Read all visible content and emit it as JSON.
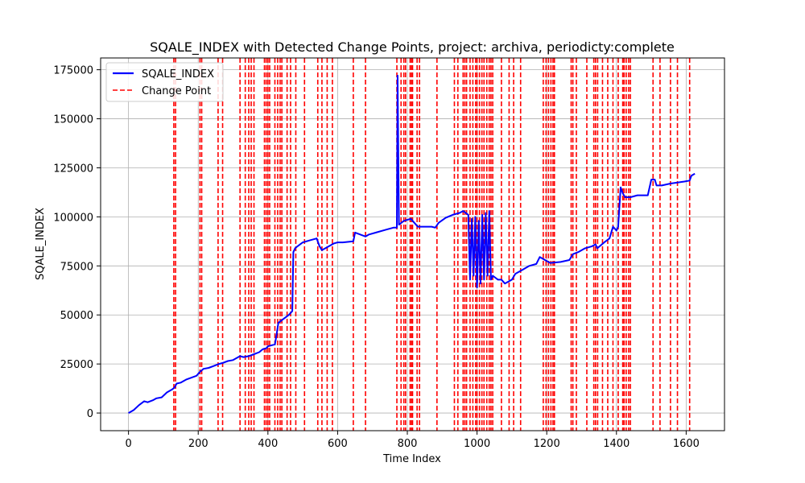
{
  "chart_data": {
    "type": "line",
    "title": "SQALE_INDEX with Detected Change Points, project: archiva, periodicty:complete",
    "xlabel": "Time Index",
    "ylabel": "SQALE_INDEX",
    "xlim": [
      -80,
      1710
    ],
    "ylim": [
      -9000,
      181000
    ],
    "x_ticks": [
      0,
      200,
      400,
      600,
      800,
      1000,
      1200,
      1400,
      1600
    ],
    "x_tick_labels": [
      "0",
      "200",
      "400",
      "600",
      "800",
      "1000",
      "1200",
      "1400",
      "1600"
    ],
    "y_ticks": [
      0,
      25000,
      50000,
      75000,
      100000,
      125000,
      150000,
      175000
    ],
    "y_tick_labels": [
      "0",
      "25000",
      "50000",
      "75000",
      "100000",
      "125000",
      "150000",
      "175000"
    ],
    "grid": true,
    "legend_position": "top-left",
    "series": [
      {
        "name": "SQALE_INDEX",
        "color": "#0000ff",
        "style": "solid",
        "x": [
          0,
          15,
          30,
          45,
          55,
          70,
          80,
          95,
          110,
          125,
          132,
          138,
          150,
          165,
          180,
          195,
          205,
          215,
          230,
          245,
          260,
          270,
          285,
          300,
          320,
          330,
          345,
          360,
          375,
          385,
          395,
          400,
          420,
          425,
          430,
          445,
          460,
          470,
          473,
          478,
          485,
          500,
          520,
          540,
          548,
          555,
          575,
          590,
          600,
          615,
          645,
          650,
          680,
          690,
          710,
          740,
          760,
          770,
          772,
          776,
          790,
          810,
          830,
          840,
          870,
          880,
          890,
          910,
          930,
          950,
          960,
          975,
          980,
          985,
          990,
          995,
          1000,
          1005,
          1010,
          1015,
          1020,
          1025,
          1030,
          1035,
          1040,
          1045,
          1060,
          1070,
          1080,
          1100,
          1110,
          1130,
          1150,
          1170,
          1180,
          1195,
          1210,
          1240,
          1265,
          1275,
          1290,
          1310,
          1330,
          1340,
          1345,
          1365,
          1380,
          1390,
          1400,
          1405,
          1412,
          1418,
          1425,
          1440,
          1460,
          1490,
          1500,
          1510,
          1515,
          1530,
          1555,
          1575,
          1595,
          1610,
          1615,
          1620,
          1625
        ],
        "y": [
          0,
          1500,
          4000,
          6000,
          5500,
          6500,
          7500,
          8000,
          10500,
          12000,
          13000,
          15000,
          15500,
          17000,
          18000,
          19000,
          21000,
          22500,
          23000,
          24000,
          25000,
          25500,
          26500,
          27000,
          29000,
          28500,
          29000,
          30000,
          31000,
          32500,
          33000,
          34000,
          35000,
          40000,
          46000,
          48000,
          50000,
          52000,
          82000,
          84000,
          85000,
          87000,
          88000,
          89000,
          85000,
          83000,
          85000,
          86500,
          87000,
          87000,
          87500,
          92000,
          90000,
          91000,
          92000,
          93500,
          94500,
          94500,
          172000,
          96000,
          98000,
          99000,
          95000,
          95000,
          95000,
          94500,
          97000,
          99500,
          101000,
          102000,
          103000,
          101000,
          68000,
          99000,
          70000,
          100000,
          64000,
          98000,
          66000,
          101000,
          68000,
          102000,
          70000,
          103000,
          68000,
          70000,
          68000,
          68000,
          66000,
          68000,
          71000,
          73000,
          75000,
          76000,
          79500,
          78000,
          76500,
          77000,
          78000,
          81000,
          82000,
          84000,
          85000,
          86000,
          84000,
          87000,
          89000,
          95000,
          93000,
          95000,
          115000,
          112000,
          110000,
          110000,
          111000,
          111000,
          119000,
          119000,
          116000,
          116000,
          117000,
          117500,
          118000,
          118500,
          121000,
          121500,
          122000
        ]
      }
    ],
    "change_points": {
      "name": "Change Point",
      "color": "#ff0000",
      "style": "dashed",
      "x": [
        130,
        135,
        205,
        210,
        257,
        270,
        320,
        335,
        345,
        352,
        360,
        390,
        395,
        400,
        405,
        420,
        428,
        435,
        440,
        455,
        465,
        480,
        505,
        543,
        555,
        570,
        585,
        645,
        680,
        770,
        782,
        790,
        795,
        808,
        812,
        815,
        828,
        835,
        885,
        935,
        945,
        960,
        965,
        970,
        980,
        988,
        996,
        1000,
        1007,
        1014,
        1020,
        1028,
        1035,
        1040,
        1045,
        1070,
        1092,
        1105,
        1125,
        1190,
        1198,
        1205,
        1212,
        1218,
        1222,
        1270,
        1275,
        1285,
        1315,
        1335,
        1340,
        1346,
        1360,
        1375,
        1390,
        1405,
        1418,
        1422,
        1428,
        1435,
        1440,
        1505,
        1525,
        1555,
        1575,
        1610
      ]
    }
  },
  "legend": {
    "series_label": "SQALE_INDEX",
    "change_label": "Change Point"
  }
}
